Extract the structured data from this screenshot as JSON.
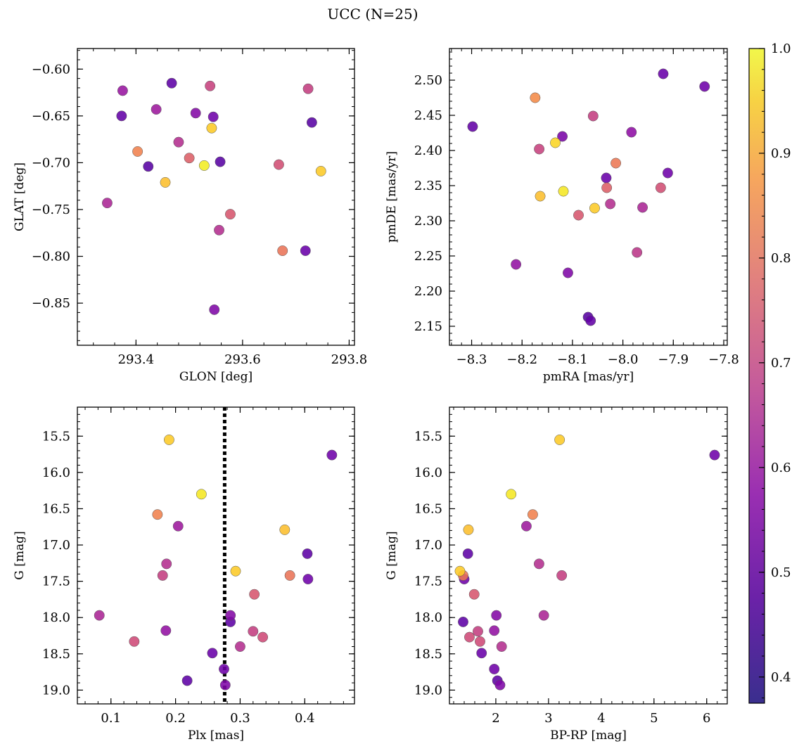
{
  "figure": {
    "suptitle": "UCC (N=25)"
  },
  "colors": {
    "colormap": "plasma",
    "membership_line": "#000000",
    "marker_edge": "#555555"
  },
  "chart_data": [
    {
      "type": "scatter",
      "xlabel": "GLON [deg]",
      "ylabel": "GLAT [deg]",
      "xlim": [
        293.29,
        293.81
      ],
      "ylim": [
        -0.895,
        -0.578
      ],
      "y_inverted": false,
      "xticks": [
        293.4,
        293.6,
        293.8
      ],
      "xtick_labels": [
        "293.4",
        "293.6",
        "293.8"
      ],
      "yticks": [
        -0.6,
        -0.65,
        -0.7,
        -0.75,
        -0.8,
        -0.85
      ],
      "ytick_labels": [
        "−0.60",
        "−0.65",
        "−0.70",
        "−0.75",
        "−0.80",
        "−0.85"
      ],
      "grid": false,
      "points": [
        {
          "x": 293.375,
          "y": -0.623,
          "c": 0.52
        },
        {
          "x": 293.373,
          "y": -0.65,
          "c": 0.42
        },
        {
          "x": 293.467,
          "y": -0.615,
          "c": 0.41
        },
        {
          "x": 293.438,
          "y": -0.643,
          "c": 0.53
        },
        {
          "x": 293.539,
          "y": -0.618,
          "c": 0.63
        },
        {
          "x": 293.512,
          "y": -0.647,
          "c": 0.48
        },
        {
          "x": 293.545,
          "y": -0.651,
          "c": 0.44
        },
        {
          "x": 293.542,
          "y": -0.663,
          "c": 0.92
        },
        {
          "x": 293.723,
          "y": -0.621,
          "c": 0.62
        },
        {
          "x": 293.73,
          "y": -0.657,
          "c": 0.4
        },
        {
          "x": 293.48,
          "y": -0.678,
          "c": 0.58
        },
        {
          "x": 293.403,
          "y": -0.688,
          "c": 0.78
        },
        {
          "x": 293.423,
          "y": -0.704,
          "c": 0.4
        },
        {
          "x": 293.5,
          "y": -0.695,
          "c": 0.7
        },
        {
          "x": 293.528,
          "y": -0.703,
          "c": 0.98
        },
        {
          "x": 293.558,
          "y": -0.699,
          "c": 0.4
        },
        {
          "x": 293.668,
          "y": -0.702,
          "c": 0.66
        },
        {
          "x": 293.747,
          "y": -0.709,
          "c": 0.92
        },
        {
          "x": 293.455,
          "y": -0.721,
          "c": 0.9
        },
        {
          "x": 293.346,
          "y": -0.743,
          "c": 0.56
        },
        {
          "x": 293.577,
          "y": -0.755,
          "c": 0.68
        },
        {
          "x": 293.556,
          "y": -0.772,
          "c": 0.58
        },
        {
          "x": 293.675,
          "y": -0.794,
          "c": 0.75
        },
        {
          "x": 293.718,
          "y": -0.794,
          "c": 0.43
        },
        {
          "x": 293.547,
          "y": -0.857,
          "c": 0.47
        }
      ]
    },
    {
      "type": "scatter",
      "xlabel": "pmRA [mas/yr]",
      "ylabel": "pmDE [mas/yr]",
      "xlim": [
        -8.344,
        -7.793
      ],
      "ylim": [
        2.123,
        2.545
      ],
      "y_inverted": false,
      "xticks": [
        -8.3,
        -8.2,
        -8.1,
        -8.0,
        -7.9,
        -7.8
      ],
      "xtick_labels": [
        "−8.3",
        "−8.2",
        "−8.1",
        "−8.0",
        "−7.9",
        "−7.8"
      ],
      "yticks": [
        2.15,
        2.2,
        2.25,
        2.3,
        2.35,
        2.4,
        2.45,
        2.5
      ],
      "ytick_labels": [
        "2.15",
        "2.20",
        "2.25",
        "2.30",
        "2.35",
        "2.40",
        "2.45",
        "2.50"
      ],
      "grid": false,
      "points": [
        {
          "x": -7.92,
          "y": 2.509,
          "c": 0.43
        },
        {
          "x": -7.838,
          "y": 2.491,
          "c": 0.44
        },
        {
          "x": -8.174,
          "y": 2.475,
          "c": 0.8
        },
        {
          "x": -8.298,
          "y": 2.434,
          "c": 0.42
        },
        {
          "x": -8.059,
          "y": 2.449,
          "c": 0.62
        },
        {
          "x": -7.983,
          "y": 2.426,
          "c": 0.5
        },
        {
          "x": -8.12,
          "y": 2.42,
          "c": 0.46
        },
        {
          "x": -8.134,
          "y": 2.411,
          "c": 0.94
        },
        {
          "x": -8.166,
          "y": 2.402,
          "c": 0.63
        },
        {
          "x": -8.014,
          "y": 2.382,
          "c": 0.76
        },
        {
          "x": -7.911,
          "y": 2.368,
          "c": 0.44
        },
        {
          "x": -8.033,
          "y": 2.361,
          "c": 0.43
        },
        {
          "x": -8.118,
          "y": 2.342,
          "c": 0.97
        },
        {
          "x": -8.032,
          "y": 2.347,
          "c": 0.7
        },
        {
          "x": -7.925,
          "y": 2.347,
          "c": 0.66
        },
        {
          "x": -8.164,
          "y": 2.335,
          "c": 0.9
        },
        {
          "x": -8.025,
          "y": 2.324,
          "c": 0.58
        },
        {
          "x": -8.056,
          "y": 2.318,
          "c": 0.92
        },
        {
          "x": -7.961,
          "y": 2.319,
          "c": 0.56
        },
        {
          "x": -8.088,
          "y": 2.308,
          "c": 0.68
        },
        {
          "x": -7.972,
          "y": 2.255,
          "c": 0.6
        },
        {
          "x": -8.212,
          "y": 2.238,
          "c": 0.51
        },
        {
          "x": -8.109,
          "y": 2.226,
          "c": 0.47
        },
        {
          "x": -8.069,
          "y": 2.163,
          "c": 0.4
        },
        {
          "x": -8.064,
          "y": 2.158,
          "c": 0.42
        }
      ]
    },
    {
      "type": "scatter",
      "xlabel": "Plx [mas]",
      "ylabel": "G [mag]",
      "xlim": [
        0.048,
        0.477
      ],
      "ylim": [
        19.19,
        15.1
      ],
      "y_inverted": true,
      "xticks": [
        0.1,
        0.2,
        0.3,
        0.4
      ],
      "xtick_labels": [
        "0.1",
        "0.2",
        "0.3",
        "0.4"
      ],
      "yticks": [
        15.5,
        16.0,
        16.5,
        17.0,
        17.5,
        18.0,
        18.5,
        19.0
      ],
      "ytick_labels": [
        "15.5",
        "16.0",
        "16.5",
        "17.0",
        "17.5",
        "18.0",
        "18.5",
        "19.0"
      ],
      "grid": false,
      "vline": {
        "x": 0.276,
        "style": "dotted"
      },
      "points": [
        {
          "x": 0.19,
          "y": 15.55,
          "c": 0.92
        },
        {
          "x": 0.442,
          "y": 15.76,
          "c": 0.44
        },
        {
          "x": 0.24,
          "y": 16.3,
          "c": 0.97
        },
        {
          "x": 0.172,
          "y": 16.58,
          "c": 0.78
        },
        {
          "x": 0.204,
          "y": 16.74,
          "c": 0.53
        },
        {
          "x": 0.369,
          "y": 16.79,
          "c": 0.9
        },
        {
          "x": 0.404,
          "y": 17.12,
          "c": 0.41
        },
        {
          "x": 0.186,
          "y": 17.26,
          "c": 0.58
        },
        {
          "x": 0.293,
          "y": 17.36,
          "c": 0.92
        },
        {
          "x": 0.18,
          "y": 17.42,
          "c": 0.62
        },
        {
          "x": 0.377,
          "y": 17.42,
          "c": 0.75
        },
        {
          "x": 0.405,
          "y": 17.47,
          "c": 0.44
        },
        {
          "x": 0.322,
          "y": 17.68,
          "c": 0.68
        },
        {
          "x": 0.082,
          "y": 17.97,
          "c": 0.56
        },
        {
          "x": 0.285,
          "y": 17.97,
          "c": 0.48
        },
        {
          "x": 0.285,
          "y": 18.06,
          "c": 0.41
        },
        {
          "x": 0.185,
          "y": 18.18,
          "c": 0.51
        },
        {
          "x": 0.32,
          "y": 18.19,
          "c": 0.62
        },
        {
          "x": 0.335,
          "y": 18.27,
          "c": 0.65
        },
        {
          "x": 0.136,
          "y": 18.33,
          "c": 0.65
        },
        {
          "x": 0.3,
          "y": 18.4,
          "c": 0.58
        },
        {
          "x": 0.257,
          "y": 18.49,
          "c": 0.43
        },
        {
          "x": 0.275,
          "y": 18.71,
          "c": 0.44
        },
        {
          "x": 0.218,
          "y": 18.87,
          "c": 0.41
        },
        {
          "x": 0.277,
          "y": 18.93,
          "c": 0.47
        }
      ]
    },
    {
      "type": "scatter",
      "xlabel": "BP-RP [mag]",
      "ylabel": "G [mag]",
      "xlim": [
        1.12,
        6.39
      ],
      "ylim": [
        19.19,
        15.1
      ],
      "y_inverted": true,
      "xticks": [
        2,
        3,
        4,
        5,
        6
      ],
      "xtick_labels": [
        "2",
        "3",
        "4",
        "5",
        "6"
      ],
      "yticks": [
        15.5,
        16.0,
        16.5,
        17.0,
        17.5,
        18.0,
        18.5,
        19.0
      ],
      "ytick_labels": [
        "15.5",
        "16.0",
        "16.5",
        "17.0",
        "17.5",
        "18.0",
        "18.5",
        "19.0"
      ],
      "grid": false,
      "points": [
        {
          "x": 3.21,
          "y": 15.55,
          "c": 0.92
        },
        {
          "x": 6.15,
          "y": 15.76,
          "c": 0.44
        },
        {
          "x": 2.29,
          "y": 16.3,
          "c": 0.97
        },
        {
          "x": 2.7,
          "y": 16.58,
          "c": 0.78
        },
        {
          "x": 2.58,
          "y": 16.74,
          "c": 0.53
        },
        {
          "x": 1.48,
          "y": 16.79,
          "c": 0.9
        },
        {
          "x": 1.47,
          "y": 17.12,
          "c": 0.41
        },
        {
          "x": 2.82,
          "y": 17.26,
          "c": 0.58
        },
        {
          "x": 1.32,
          "y": 17.36,
          "c": 0.92
        },
        {
          "x": 1.38,
          "y": 17.42,
          "c": 0.75
        },
        {
          "x": 3.25,
          "y": 17.42,
          "c": 0.62
        },
        {
          "x": 1.4,
          "y": 17.47,
          "c": 0.44
        },
        {
          "x": 1.59,
          "y": 17.68,
          "c": 0.68
        },
        {
          "x": 2.01,
          "y": 17.97,
          "c": 0.48
        },
        {
          "x": 2.91,
          "y": 17.97,
          "c": 0.56
        },
        {
          "x": 1.38,
          "y": 18.06,
          "c": 0.41
        },
        {
          "x": 1.97,
          "y": 18.18,
          "c": 0.51
        },
        {
          "x": 1.66,
          "y": 18.19,
          "c": 0.62
        },
        {
          "x": 1.5,
          "y": 18.27,
          "c": 0.65
        },
        {
          "x": 1.7,
          "y": 18.33,
          "c": 0.65
        },
        {
          "x": 2.11,
          "y": 18.4,
          "c": 0.58
        },
        {
          "x": 1.73,
          "y": 18.49,
          "c": 0.43
        },
        {
          "x": 1.97,
          "y": 18.71,
          "c": 0.44
        },
        {
          "x": 2.03,
          "y": 18.87,
          "c": 0.41
        },
        {
          "x": 2.08,
          "y": 18.93,
          "c": 0.47
        }
      ]
    }
  ],
  "colorbar": {
    "cmap": "plasma",
    "range": [
      0.375,
      1.0
    ],
    "ticks": [
      0.4,
      0.5,
      0.6,
      0.7,
      0.8,
      0.9,
      1.0
    ],
    "tick_labels": [
      "0.4",
      "0.5",
      "0.6",
      "0.7",
      "0.8",
      "0.9",
      "1.0"
    ]
  }
}
